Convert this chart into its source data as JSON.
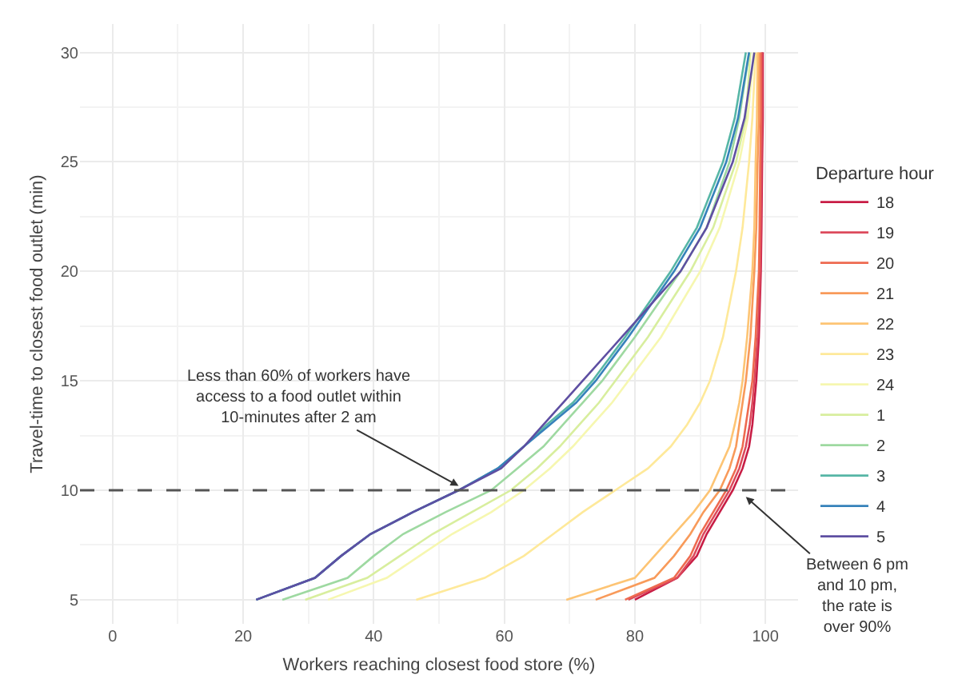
{
  "chart_data": {
    "type": "line",
    "xlabel": "Workers reaching closest food store (%)",
    "ylabel": "Travel-time to closest food outlet (min)",
    "legend_title": "Departure hour",
    "legend": "right",
    "grid": true,
    "marker": "none",
    "line_style": "solid",
    "xlim": [
      -5,
      105
    ],
    "xticks": [
      0,
      20,
      40,
      60,
      80,
      100
    ],
    "ylim": [
      3.9,
      31.3
    ],
    "yticks": [
      5,
      10,
      15,
      20,
      25,
      30
    ],
    "ref_lines": [
      {
        "axis": "y",
        "value": 10,
        "color": "#555555",
        "line_style": "dashed"
      }
    ],
    "annotations": [
      {
        "text": "Less than 60% of workers have\naccess to a food outlet within\n10-minutes after 2 am",
        "x": 53,
        "y": 10.2
      },
      {
        "text": "Between 6 pm\nand 10 pm,\nthe rate is\nover 90%",
        "x": 97,
        "y": 9.7
      }
    ],
    "series": [
      {
        "name": "18",
        "color": "#c81d45",
        "x": [
          80,
          86.5,
          89.5,
          91,
          93,
          95,
          96.5,
          97.5,
          98,
          98.3,
          98.6,
          99,
          99.3,
          99.4,
          99.5,
          99.6,
          99.6
        ],
        "values": [
          5,
          6,
          7,
          8,
          9,
          10,
          11,
          12,
          13,
          14,
          15,
          17,
          20,
          22,
          25,
          27,
          30
        ]
      },
      {
        "name": "19",
        "color": "#dc4a5c",
        "x": [
          79,
          86.5,
          89,
          90.5,
          92.5,
          94.5,
          96,
          97,
          97.6,
          98,
          98.3,
          98.8,
          99.2,
          99.3,
          99.4,
          99.5,
          99.5
        ],
        "values": [
          5,
          6,
          7,
          8,
          9,
          10,
          11,
          12,
          13,
          14,
          15,
          17,
          20,
          22,
          25,
          27,
          30
        ]
      },
      {
        "name": "20",
        "color": "#ee6a50",
        "x": [
          78.5,
          86,
          88.5,
          90,
          92,
          94,
          95.5,
          96.5,
          97,
          97.5,
          98,
          98.5,
          99,
          99.1,
          99.2,
          99.3,
          99.3
        ],
        "values": [
          5,
          6,
          7,
          8,
          9,
          10,
          11,
          12,
          13,
          14,
          15,
          17,
          20,
          22,
          25,
          27,
          30
        ]
      },
      {
        "name": "21",
        "color": "#f89a5a",
        "x": [
          74,
          83,
          86,
          88.5,
          90.5,
          93,
          94.5,
          95.5,
          96,
          96.5,
          97,
          97.7,
          98.3,
          98.6,
          98.8,
          99,
          99
        ],
        "values": [
          5,
          6,
          7,
          8,
          9,
          10,
          11,
          12,
          13,
          14,
          15,
          17,
          20,
          22,
          25,
          27,
          30
        ]
      },
      {
        "name": "22",
        "color": "#fdc474",
        "x": [
          69.5,
          80,
          83,
          86,
          89,
          91.5,
          93,
          94.5,
          95.3,
          96,
          96.5,
          97.2,
          98,
          98.3,
          98.5,
          98.7,
          98.8
        ],
        "values": [
          5,
          6,
          7,
          8,
          9,
          10,
          11,
          12,
          13,
          14,
          15,
          17,
          20,
          22,
          25,
          27,
          30
        ]
      },
      {
        "name": "23",
        "color": "#fee99a",
        "x": [
          46.5,
          57,
          63,
          67.5,
          72,
          77,
          82,
          85.5,
          88,
          90,
          91.5,
          93.5,
          95.5,
          96.5,
          97.5,
          98,
          98.5
        ],
        "values": [
          5,
          6,
          7,
          8,
          9,
          10,
          11,
          12,
          13,
          14,
          15,
          17,
          20,
          22,
          25,
          27,
          30
        ]
      },
      {
        "name": "24",
        "color": "#f6f7b0",
        "x": [
          33,
          42,
          47,
          52,
          58,
          63,
          67,
          70.5,
          73.5,
          76.5,
          79,
          84,
          90,
          93,
          96,
          97.3,
          98.2
        ],
        "values": [
          5,
          6,
          7,
          8,
          9,
          10,
          11,
          12,
          13,
          14,
          15,
          17,
          20,
          22,
          25,
          27,
          30
        ]
      },
      {
        "name": "1",
        "color": "#d8ee9e",
        "x": [
          29.5,
          39,
          44,
          49,
          55,
          61,
          65,
          68.5,
          71.5,
          74.5,
          77,
          82,
          88.5,
          92,
          95.5,
          97,
          97.7
        ],
        "values": [
          5,
          6,
          7,
          8,
          9,
          10,
          11,
          12,
          13,
          14,
          15,
          17,
          20,
          22,
          25,
          27,
          30
        ]
      },
      {
        "name": "2",
        "color": "#9ed9a1",
        "x": [
          26,
          36,
          40,
          44.5,
          51,
          58,
          62,
          66,
          69,
          72,
          75,
          80,
          87,
          91,
          94.5,
          96,
          97.5
        ],
        "values": [
          5,
          6,
          7,
          8,
          9,
          10,
          11,
          12,
          13,
          14,
          15,
          17,
          20,
          22,
          25,
          27,
          30
        ]
      },
      {
        "name": "3",
        "color": "#56b6a6",
        "x": [
          22,
          31,
          35,
          39.5,
          46,
          53,
          59,
          63,
          66.5,
          70.5,
          73.5,
          78.5,
          85.5,
          89.5,
          93.5,
          95.3,
          97
        ],
        "values": [
          5,
          6,
          7,
          8,
          9,
          10,
          11,
          12,
          13,
          14,
          15,
          17,
          20,
          22,
          25,
          27,
          30
        ]
      },
      {
        "name": "4",
        "color": "#3682ba",
        "x": [
          22,
          31,
          35,
          39.5,
          46,
          53,
          59,
          63,
          67,
          71,
          74,
          79,
          86,
          90,
          94,
          95.8,
          97.5
        ],
        "values": [
          5,
          6,
          7,
          8,
          9,
          10,
          11,
          12,
          13,
          14,
          15,
          17,
          20,
          22,
          25,
          27,
          30
        ]
      },
      {
        "name": "5",
        "color": "#5e4fa2",
        "x": [
          22,
          31,
          35,
          39.5,
          46,
          53,
          59.5,
          63,
          66,
          69,
          72,
          78,
          87,
          91,
          95,
          96.8,
          98.3
        ],
        "values": [
          5,
          6,
          7,
          8,
          9,
          10,
          11,
          12,
          13,
          14,
          15,
          17,
          20,
          22,
          25,
          27,
          30
        ]
      }
    ]
  }
}
